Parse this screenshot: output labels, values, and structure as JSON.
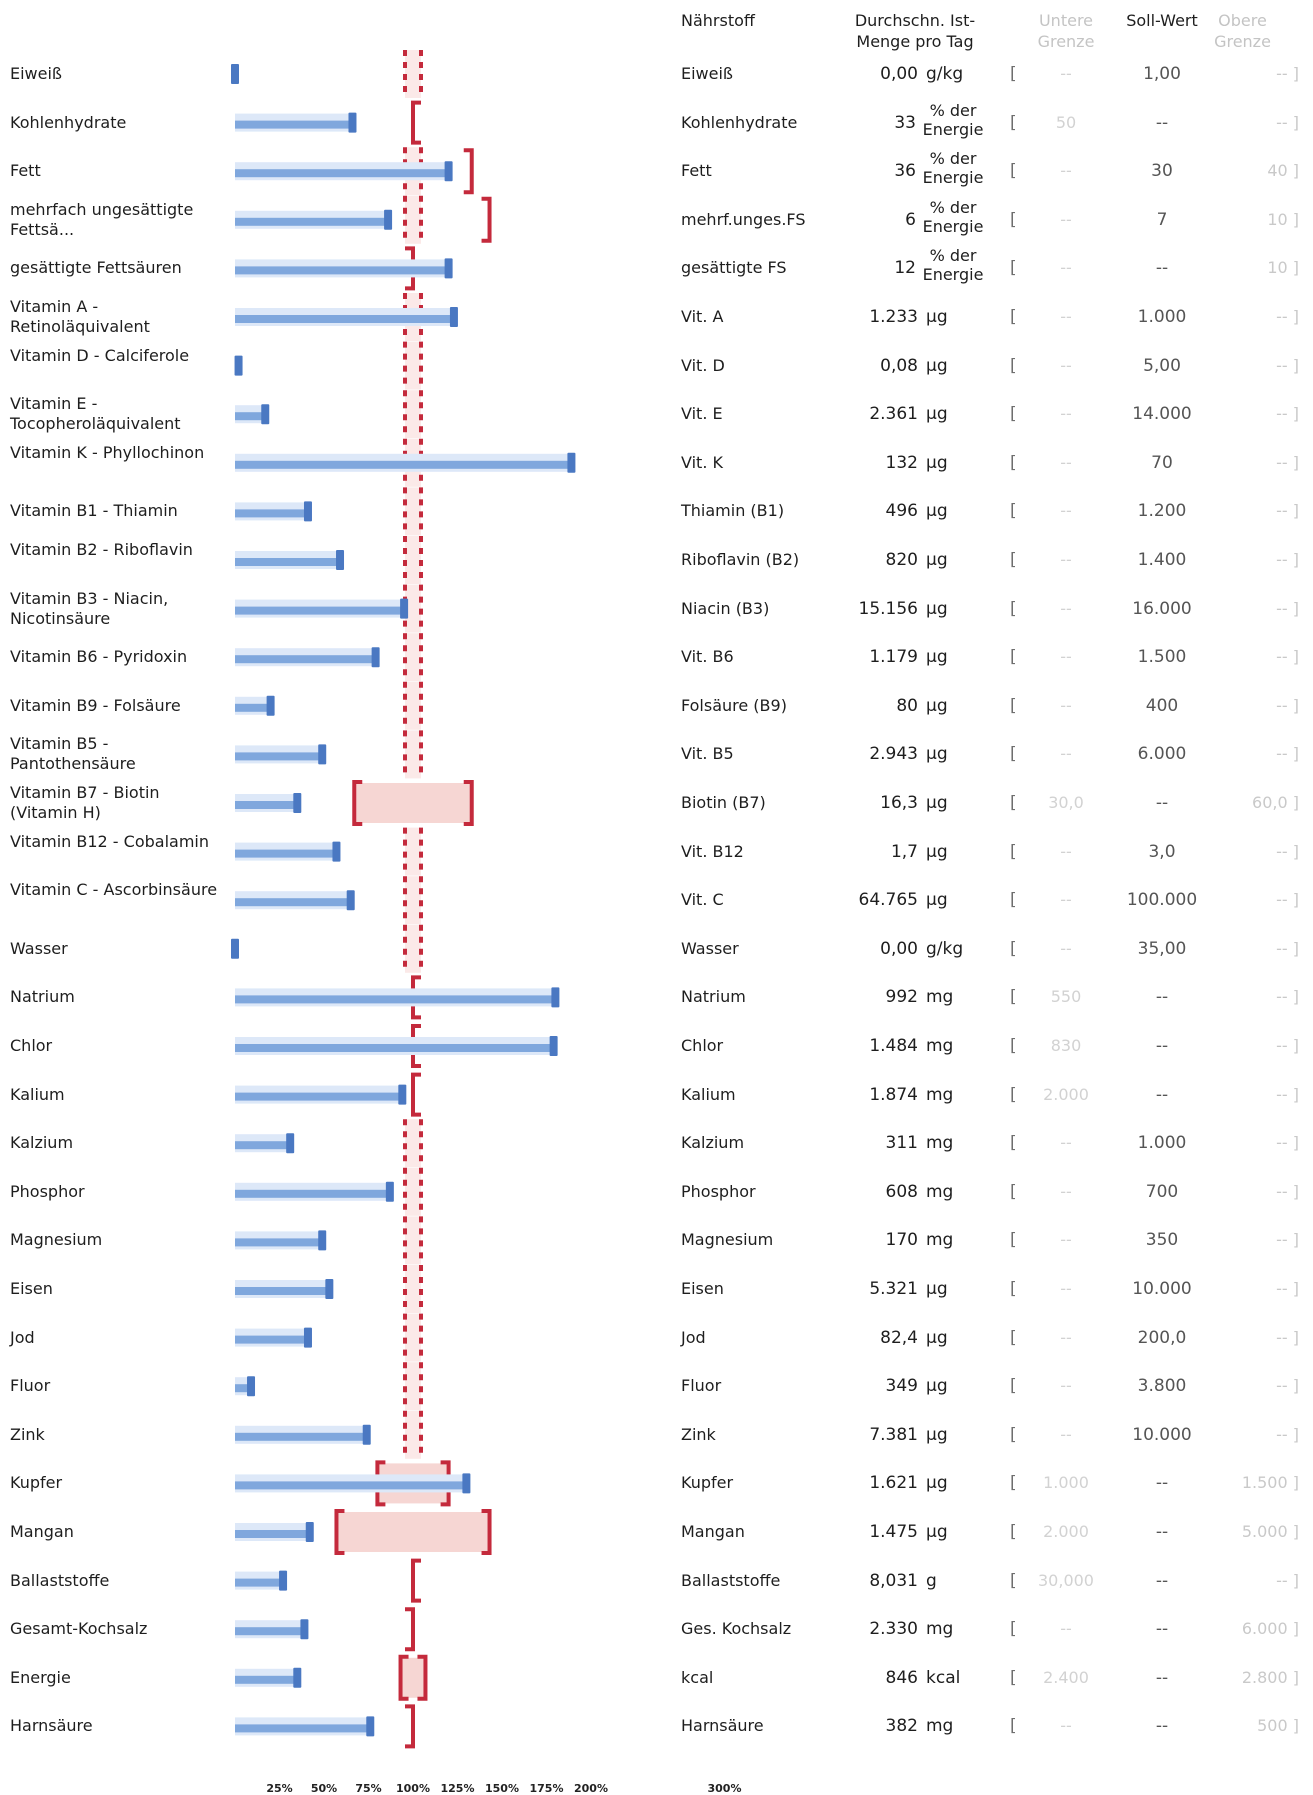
{
  "colors": {
    "bar": "#7fa7dd",
    "bar_light": "#dde8f8",
    "marker": "#4a78c2",
    "target": "#c42a3c",
    "range_fill": "#f6d6d3"
  },
  "headers": {
    "naehrstoff": "Nährstoff",
    "ist_menge": "Durchschn. Ist-Menge pro Tag",
    "untere": "Untere Grenze",
    "soll": "Soll-Wert",
    "obere": "Obere Grenze"
  },
  "chart_data": {
    "type": "bar",
    "orientation": "horizontal",
    "x_ticks": [
      "25%",
      "50%",
      "75%",
      "100%",
      "125%",
      "150%",
      "175%",
      "200%",
      "300%"
    ],
    "rows": [
      {
        "name": "Eiweiß",
        "short": "Eiweiß",
        "amount": "0,00",
        "unit": "g/kg",
        "lower": "--",
        "soll": "1,00",
        "upper": "--",
        "pct": 0,
        "target": "dashed"
      },
      {
        "name": "Kohlenhydrate",
        "short": "Kohlenhydrate",
        "amount": "33",
        "unit": "% der Energie",
        "lower": "50",
        "soll": "--",
        "upper": "--",
        "pct": 66,
        "target": "lower"
      },
      {
        "name": "Fett",
        "short": "Fett",
        "amount": "36",
        "unit": "% der Energie",
        "lower": "--",
        "soll": "30",
        "upper": "40",
        "pct": 120,
        "target": "dashed",
        "upper_pct": 133
      },
      {
        "name": "mehrfach ungesättigte Fettsä...",
        "short": "mehrf.unges.FS",
        "amount": "6",
        "unit": "% der Energie",
        "lower": "--",
        "soll": "7",
        "upper": "10",
        "pct": 86,
        "target": "dashed",
        "upper_pct": 143
      },
      {
        "name": "gesättigte Fettsäuren",
        "short": "gesättigte FS",
        "amount": "12",
        "unit": "% der Energie",
        "lower": "--",
        "soll": "--",
        "upper": "10",
        "pct": 120,
        "target": "upper"
      },
      {
        "name": "Vitamin A - Retinoläquivalent",
        "short": "Vit. A",
        "amount": "1.233",
        "unit": "µg",
        "lower": "--",
        "soll": "1.000",
        "upper": "--",
        "pct": 123,
        "target": "dashed"
      },
      {
        "name": "Vitamin D - Calciferole",
        "short": "Vit. D",
        "amount": "0,08",
        "unit": "µg",
        "lower": "--",
        "soll": "5,00",
        "upper": "--",
        "pct": 2,
        "target": "dashed"
      },
      {
        "name": "Vitamin E - Tocopheroläquivalent",
        "short": "Vit. E",
        "amount": "2.361",
        "unit": "µg",
        "lower": "--",
        "soll": "14.000",
        "upper": "--",
        "pct": 17,
        "target": "dashed"
      },
      {
        "name": "Vitamin K - Phyllochinon",
        "short": "Vit. K",
        "amount": "132",
        "unit": "µg",
        "lower": "--",
        "soll": "70",
        "upper": "--",
        "pct": 189,
        "target": "dashed"
      },
      {
        "name": "Vitamin B1 - Thiamin",
        "short": "Thiamin (B1)",
        "amount": "496",
        "unit": "µg",
        "lower": "--",
        "soll": "1.200",
        "upper": "--",
        "pct": 41,
        "target": "dashed"
      },
      {
        "name": "Vitamin B2 - Riboflavin",
        "short": "Riboflavin (B2)",
        "amount": "820",
        "unit": "µg",
        "lower": "--",
        "soll": "1.400",
        "upper": "--",
        "pct": 59,
        "target": "dashed"
      },
      {
        "name": "Vitamin B3 - Niacin, Nicotinsäure",
        "short": "Niacin (B3)",
        "amount": "15.156",
        "unit": "µg",
        "lower": "--",
        "soll": "16.000",
        "upper": "--",
        "pct": 95,
        "target": "dashed"
      },
      {
        "name": "Vitamin B6 - Pyridoxin",
        "short": "Vit. B6",
        "amount": "1.179",
        "unit": "µg",
        "lower": "--",
        "soll": "1.500",
        "upper": "--",
        "pct": 79,
        "target": "dashed"
      },
      {
        "name": "Vitamin B9 - Folsäure",
        "short": "Folsäure (B9)",
        "amount": "80",
        "unit": "µg",
        "lower": "--",
        "soll": "400",
        "upper": "--",
        "pct": 20,
        "target": "dashed"
      },
      {
        "name": "Vitamin B5 - Pantothensäure",
        "short": "Vit. B5",
        "amount": "2.943",
        "unit": "µg",
        "lower": "--",
        "soll": "6.000",
        "upper": "--",
        "pct": 49,
        "target": "dashed"
      },
      {
        "name": "Vitamin B7 - Biotin (Vitamin H)",
        "short": "Biotin (B7)",
        "amount": "16,3",
        "unit": "µg",
        "lower": "30,0",
        "soll": "--",
        "upper": "60,0",
        "pct": 35,
        "target": "range",
        "lower_pct": 67,
        "upper_pct": 133
      },
      {
        "name": "Vitamin B12 - Cobalamin",
        "short": "Vit. B12",
        "amount": "1,7",
        "unit": "µg",
        "lower": "--",
        "soll": "3,0",
        "upper": "--",
        "pct": 57,
        "target": "dashed"
      },
      {
        "name": "Vitamin C - Ascorbinsäure",
        "short": "Vit. C",
        "amount": "64.765",
        "unit": "µg",
        "lower": "--",
        "soll": "100.000",
        "upper": "--",
        "pct": 65,
        "target": "dashed"
      },
      {
        "name": "Wasser",
        "short": "Wasser",
        "amount": "0,00",
        "unit": "g/kg",
        "lower": "--",
        "soll": "35,00",
        "upper": "--",
        "pct": 0,
        "target": "dashed"
      },
      {
        "name": "Natrium",
        "short": "Natrium",
        "amount": "992",
        "unit": "mg",
        "lower": "550",
        "soll": "--",
        "upper": "--",
        "pct": 180,
        "target": "lower"
      },
      {
        "name": "Chlor",
        "short": "Chlor",
        "amount": "1.484",
        "unit": "mg",
        "lower": "830",
        "soll": "--",
        "upper": "--",
        "pct": 179,
        "target": "lower"
      },
      {
        "name": "Kalium",
        "short": "Kalium",
        "amount": "1.874",
        "unit": "mg",
        "lower": "2.000",
        "soll": "--",
        "upper": "--",
        "pct": 94,
        "target": "lower"
      },
      {
        "name": "Kalzium",
        "short": "Kalzium",
        "amount": "311",
        "unit": "mg",
        "lower": "--",
        "soll": "1.000",
        "upper": "--",
        "pct": 31,
        "target": "dashed"
      },
      {
        "name": "Phosphor",
        "short": "Phosphor",
        "amount": "608",
        "unit": "mg",
        "lower": "--",
        "soll": "700",
        "upper": "--",
        "pct": 87,
        "target": "dashed"
      },
      {
        "name": "Magnesium",
        "short": "Magnesium",
        "amount": "170",
        "unit": "mg",
        "lower": "--",
        "soll": "350",
        "upper": "--",
        "pct": 49,
        "target": "dashed"
      },
      {
        "name": "Eisen",
        "short": "Eisen",
        "amount": "5.321",
        "unit": "µg",
        "lower": "--",
        "soll": "10.000",
        "upper": "--",
        "pct": 53,
        "target": "dashed"
      },
      {
        "name": "Jod",
        "short": "Jod",
        "amount": "82,4",
        "unit": "µg",
        "lower": "--",
        "soll": "200,0",
        "upper": "--",
        "pct": 41,
        "target": "dashed"
      },
      {
        "name": "Fluor",
        "short": "Fluor",
        "amount": "349",
        "unit": "µg",
        "lower": "--",
        "soll": "3.800",
        "upper": "--",
        "pct": 9,
        "target": "dashed"
      },
      {
        "name": "Zink",
        "short": "Zink",
        "amount": "7.381",
        "unit": "µg",
        "lower": "--",
        "soll": "10.000",
        "upper": "--",
        "pct": 74,
        "target": "dashed"
      },
      {
        "name": "Kupfer",
        "short": "Kupfer",
        "amount": "1.621",
        "unit": "µg",
        "lower": "1.000",
        "soll": "--",
        "upper": "1.500",
        "pct": 130,
        "target": "range",
        "lower_pct": 80,
        "upper_pct": 120
      },
      {
        "name": "Mangan",
        "short": "Mangan",
        "amount": "1.475",
        "unit": "µg",
        "lower": "2.000",
        "soll": "--",
        "upper": "5.000",
        "pct": 42,
        "target": "range",
        "lower_pct": 57,
        "upper_pct": 143
      },
      {
        "name": "Ballaststoffe",
        "short": "Ballaststoffe",
        "amount": "8,031",
        "unit": "g",
        "lower": "30,000",
        "soll": "--",
        "upper": "--",
        "pct": 27,
        "target": "lower"
      },
      {
        "name": "Gesamt-Kochsalz",
        "short": "Ges. Kochsalz",
        "amount": "2.330",
        "unit": "mg",
        "lower": "--",
        "soll": "--",
        "upper": "6.000",
        "pct": 39,
        "target": "upper"
      },
      {
        "name": "Energie",
        "short": "kcal",
        "amount": "846",
        "unit": "kcal",
        "lower": "2.400",
        "soll": "--",
        "upper": "2.800",
        "pct": 35,
        "target": "range",
        "lower_pct": 93,
        "upper_pct": 107
      },
      {
        "name": "Harnsäure",
        "short": "Harnsäure",
        "amount": "382",
        "unit": "mg",
        "lower": "--",
        "soll": "--",
        "upper": "500",
        "pct": 76,
        "target": "upper"
      }
    ]
  }
}
